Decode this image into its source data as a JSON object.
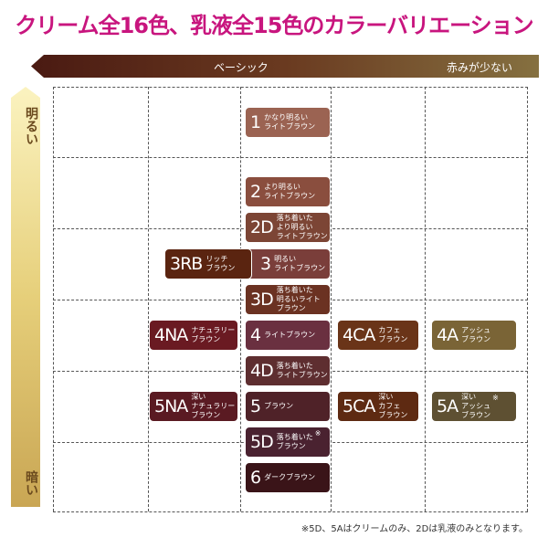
{
  "title": "クリーム全16色、乳液全15色のカラーバリエーション",
  "header": {
    "basic": "ベーシック",
    "less_red": "赤みが少ない"
  },
  "axis": {
    "light": "明るい",
    "dark": "暗い"
  },
  "swatches": [
    {
      "code": "1",
      "name": "かなり明るい\nライトブラウン",
      "color": "#9b6352",
      "mark": ""
    },
    {
      "code": "2",
      "name": "より明るい\nライトブラウン",
      "color": "#8a4e3e",
      "mark": ""
    },
    {
      "code": "2D",
      "name": "落ち着いた\nより明るい\nライトブラウン",
      "color": "#7c4535",
      "mark": "※"
    },
    {
      "code": "3",
      "name": "明るい\nライトブラウン",
      "color": "#7a3e3a",
      "mark": ""
    },
    {
      "code": "3RB",
      "name": "リッチ\nブラウン",
      "color": "#5a2410",
      "mark": ""
    },
    {
      "code": "3D",
      "name": "落ち着いた\n明るいライト\nブラウン",
      "color": "#6b3222",
      "mark": ""
    },
    {
      "code": "4NA",
      "name": "ナチュラリー\nブラウン",
      "color": "#6a1a22",
      "mark": ""
    },
    {
      "code": "4",
      "name": "ライトブラウン",
      "color": "#6a3040",
      "mark": ""
    },
    {
      "code": "4CA",
      "name": "カフェ\nブラウン",
      "color": "#6a3418",
      "mark": ""
    },
    {
      "code": "4A",
      "name": "アッシュ\nブラウン",
      "color": "#7a6436",
      "mark": ""
    },
    {
      "code": "4D",
      "name": "落ち着いた\nライトブラウン",
      "color": "#5e2e30",
      "mark": ""
    },
    {
      "code": "5NA",
      "name": "深い\nナチュラリー\nブラウン",
      "color": "#5a1a22",
      "mark": ""
    },
    {
      "code": "5",
      "name": "ブラウン",
      "color": "#4f2228",
      "mark": ""
    },
    {
      "code": "5CA",
      "name": "深い\nカフェ\nブラウン",
      "color": "#5e2a12",
      "mark": ""
    },
    {
      "code": "5A",
      "name": "深い\nアッシュ\nブラウン",
      "color": "#5e5032",
      "mark": "※"
    },
    {
      "code": "5D",
      "name": "落ち着いた\nブラウン",
      "color": "#4a2230",
      "mark": "※"
    },
    {
      "code": "6",
      "name": "ダークブラウン",
      "color": "#3a1418",
      "mark": ""
    }
  ],
  "footnote": "※5D、5Aはクリームのみ、2Dは乳液のみとなります。"
}
